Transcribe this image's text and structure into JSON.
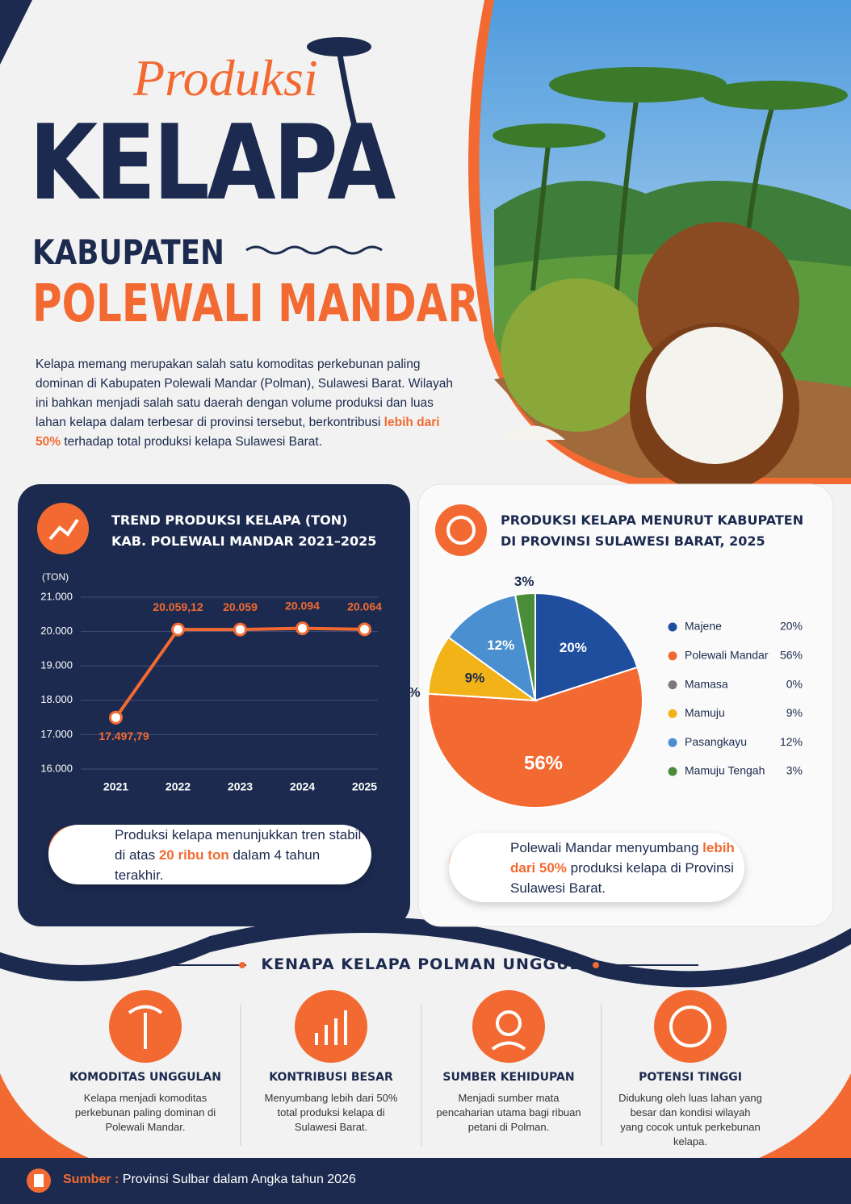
{
  "header": {
    "script_title": "Produksi",
    "title": "KELAPA",
    "subtitle": "KABUPATEN",
    "region": "POLEWALI MANDAR"
  },
  "intro": {
    "text": "Kelapa memang merupakan salah satu komoditas perkebunan paling dominan di Kabupaten Polewali Mandar (Polman), Sulawesi Barat. Wilayah ini bahkan menjadi salah satu daerah dengan volume produksi dan luas lahan kelapa dalam terbesar di provinsi tersebut, berkontribusi",
    "highlight": "lebih dari 50%",
    "text_after": "terhadap total produksi kelapa Sulawesi Barat."
  },
  "chart_data": [
    {
      "type": "line",
      "title_lines": [
        "TREND PRODUKSI KELAPA (TON)",
        "KAB. POLEWALI MANDAR 2021–2025"
      ],
      "y_unit": "(TON)",
      "x": [
        "2021",
        "2022",
        "2023",
        "2024",
        "2025"
      ],
      "series": [
        {
          "color": "#f26a32",
          "values": [
            17497.79,
            20059.12,
            20059,
            20094,
            20064
          ],
          "value_labels": [
            "17.497,79",
            "20.059,12",
            "20.059",
            "20.094",
            "20.064"
          ]
        }
      ],
      "ylim": [
        16000,
        21000
      ],
      "yticks": [
        {
          "value": 16000,
          "label": "16.000"
        },
        {
          "value": 17000,
          "label": "17.000"
        },
        {
          "value": 18000,
          "label": "18.000"
        },
        {
          "value": 19000,
          "label": "19.000"
        },
        {
          "value": 20000,
          "label": "20.000"
        },
        {
          "value": 21000,
          "label": "21.000"
        }
      ],
      "grid": true,
      "note": {
        "text": "Produksi kelapa menunjukkan tren stabil di atas",
        "highlight": "20 ribu ton",
        "text_after": "dalam 4 tahun terakhir."
      }
    },
    {
      "type": "pie",
      "title_lines": [
        "PRODUKSI KELAPA MENURUT KABUPATEN",
        "DI PROVINSI SULAWESI BARAT, 2025"
      ],
      "categories": [
        "Majene",
        "Polewali Mandar",
        "Mamasa",
        "Mamuju",
        "Pasangkayu",
        "Mamuju Tengah"
      ],
      "values": [
        20,
        56,
        0,
        9,
        12,
        3
      ],
      "value_labels": [
        "20%",
        "56%",
        "0%",
        "9%",
        "12%",
        "3%"
      ],
      "colors": [
        "#1f4e9e",
        "#f26a32",
        "#7a7a7a",
        "#f2b318",
        "#4a8fcf",
        "#4a8c3a"
      ],
      "note": {
        "text": "Polewali Mandar menyumbang",
        "highlight": "lebih dari 50%",
        "text_after": "produksi kelapa di Provinsi Sulawesi Barat."
      }
    }
  ],
  "reasons": {
    "title": "KENAPA KELAPA POLMAN UNGGUL?",
    "items": [
      {
        "title": "KOMODITAS UNGGULAN",
        "text": "Kelapa menjadi komoditas perkebunan paling dominan di Polewali Mandar."
      },
      {
        "title": "KONTRIBUSI BESAR",
        "text": "Menyumbang lebih dari 50% total produksi kelapa di Sulawesi Barat."
      },
      {
        "title": "SUMBER KEHIDUPAN",
        "text": "Menjadi sumber mata pencaharian utama bagi ribuan petani di Polman."
      },
      {
        "title": "POTENSI TINGGI",
        "text": "Didukung oleh luas lahan yang besar dan kondisi wilayah yang cocok untuk perkebunan kelapa."
      }
    ]
  },
  "source": {
    "label": "Sumber :",
    "text": "Provinsi Sulbar dalam Angka tahun 2026"
  }
}
